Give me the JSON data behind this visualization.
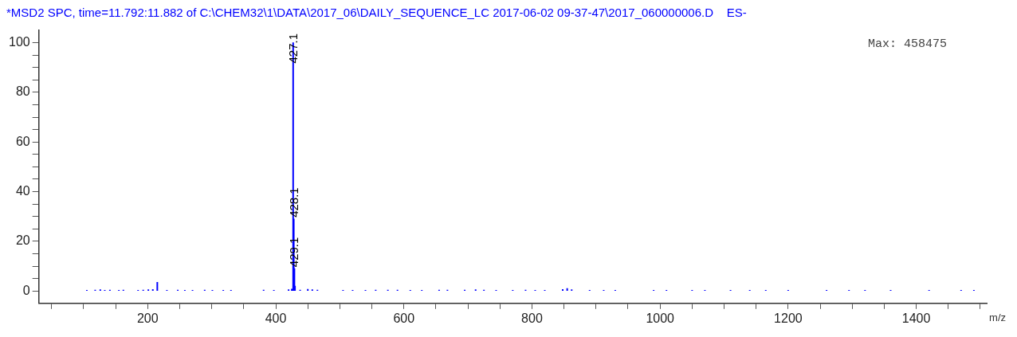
{
  "chart_data": {
    "type": "bar",
    "title": "*MSD2 SPC, time=11.792:11.882 of C:\\CHEM32\\1\\DATA\\2017_06\\DAILY_SEQUENCE_LC 2017-06-02 09-37-47\\2017_060000006.D    ES-",
    "xlabel": "m/z",
    "annotations": [
      "Max: 458475",
      {
        "text": "427.1",
        "x": 427.1,
        "y": 100
      },
      {
        "text": "428.1",
        "x": 428.1,
        "y": 29
      },
      {
        "text": "429.1",
        "x": 429.1,
        "y": 9
      }
    ],
    "color": "#0000ff",
    "x": [
      105,
      118,
      126,
      133,
      141,
      155,
      162,
      185,
      193,
      201,
      208,
      215,
      230,
      247,
      258,
      270,
      289,
      301,
      318,
      330,
      381,
      397,
      420,
      425,
      427.1,
      428.1,
      429.1,
      430,
      438,
      450,
      457,
      465,
      505,
      520,
      540,
      556,
      575,
      590,
      610,
      628,
      655,
      668,
      695,
      712,
      725,
      744,
      770,
      790,
      805,
      820,
      848,
      855,
      862,
      890,
      912,
      930,
      990,
      1010,
      1050,
      1070,
      1110,
      1140,
      1165,
      1200,
      1260,
      1295,
      1320,
      1360,
      1420,
      1470,
      1490
    ],
    "values": [
      0.3,
      0.4,
      0.5,
      0.3,
      0.4,
      0.3,
      0.4,
      0.3,
      0.4,
      0.5,
      0.6,
      3.5,
      0.3,
      0.4,
      0.3,
      0.3,
      0.4,
      0.3,
      0.3,
      0.3,
      0.4,
      0.3,
      0.5,
      0.8,
      100,
      29,
      9,
      2,
      0.4,
      0.7,
      0.5,
      0.4,
      0.3,
      0.3,
      0.3,
      0.4,
      0.4,
      0.4,
      0.3,
      0.3,
      0.4,
      0.4,
      0.4,
      0.5,
      0.4,
      0.3,
      0.3,
      0.4,
      0.3,
      0.3,
      0.6,
      1,
      0.5,
      0.3,
      0.3,
      0.3,
      0.3,
      0.3,
      0.3,
      0.3,
      0.3,
      0.3,
      0.3,
      0.3,
      0.3,
      0.3,
      0.3,
      0.3,
      0.3,
      0.3,
      0.3
    ],
    "xlim": [
      30,
      1510
    ],
    "xticks": [
      {
        "value": 50,
        "label": null
      },
      {
        "value": 100,
        "label": null
      },
      {
        "value": 150,
        "label": null
      },
      200,
      {
        "value": 250,
        "label": null
      },
      {
        "value": 300,
        "label": null
      },
      {
        "value": 350,
        "label": null
      },
      400,
      {
        "value": 450,
        "label": null
      },
      {
        "value": 500,
        "label": null
      },
      {
        "value": 550,
        "label": null
      },
      600,
      {
        "value": 650,
        "label": null
      },
      {
        "value": 700,
        "label": null
      },
      {
        "value": 750,
        "label": null
      },
      800,
      {
        "value": 850,
        "label": null
      },
      {
        "value": 900,
        "label": null
      },
      {
        "value": 950,
        "label": null
      },
      1000,
      {
        "value": 1050,
        "label": null
      },
      {
        "value": 1100,
        "label": null
      },
      {
        "value": 1150,
        "label": null
      },
      1200,
      {
        "value": 1250,
        "label": null
      },
      {
        "value": 1300,
        "label": null
      },
      {
        "value": 1350,
        "label": null
      },
      1400,
      {
        "value": 1450,
        "label": null
      },
      {
        "value": 1500,
        "label": null
      }
    ],
    "ylim": [
      -5,
      105
    ],
    "yticks": [
      0,
      {
        "value": 5,
        "label": null
      },
      {
        "value": 10,
        "label": null
      },
      {
        "value": 15,
        "label": null
      },
      20,
      {
        "value": 25,
        "label": null
      },
      {
        "value": 30,
        "label": null
      },
      {
        "value": 35,
        "label": null
      },
      40,
      {
        "value": 45,
        "label": null
      },
      {
        "value": 50,
        "label": null
      },
      {
        "value": 55,
        "label": null
      },
      60,
      {
        "value": 65,
        "label": null
      },
      {
        "value": 70,
        "label": null
      },
      {
        "value": 75,
        "label": null
      },
      80,
      {
        "value": 85,
        "label": null
      },
      {
        "value": 90,
        "label": null
      },
      {
        "value": 95,
        "label": null
      },
      100
    ],
    "grid": false,
    "legend": false
  }
}
